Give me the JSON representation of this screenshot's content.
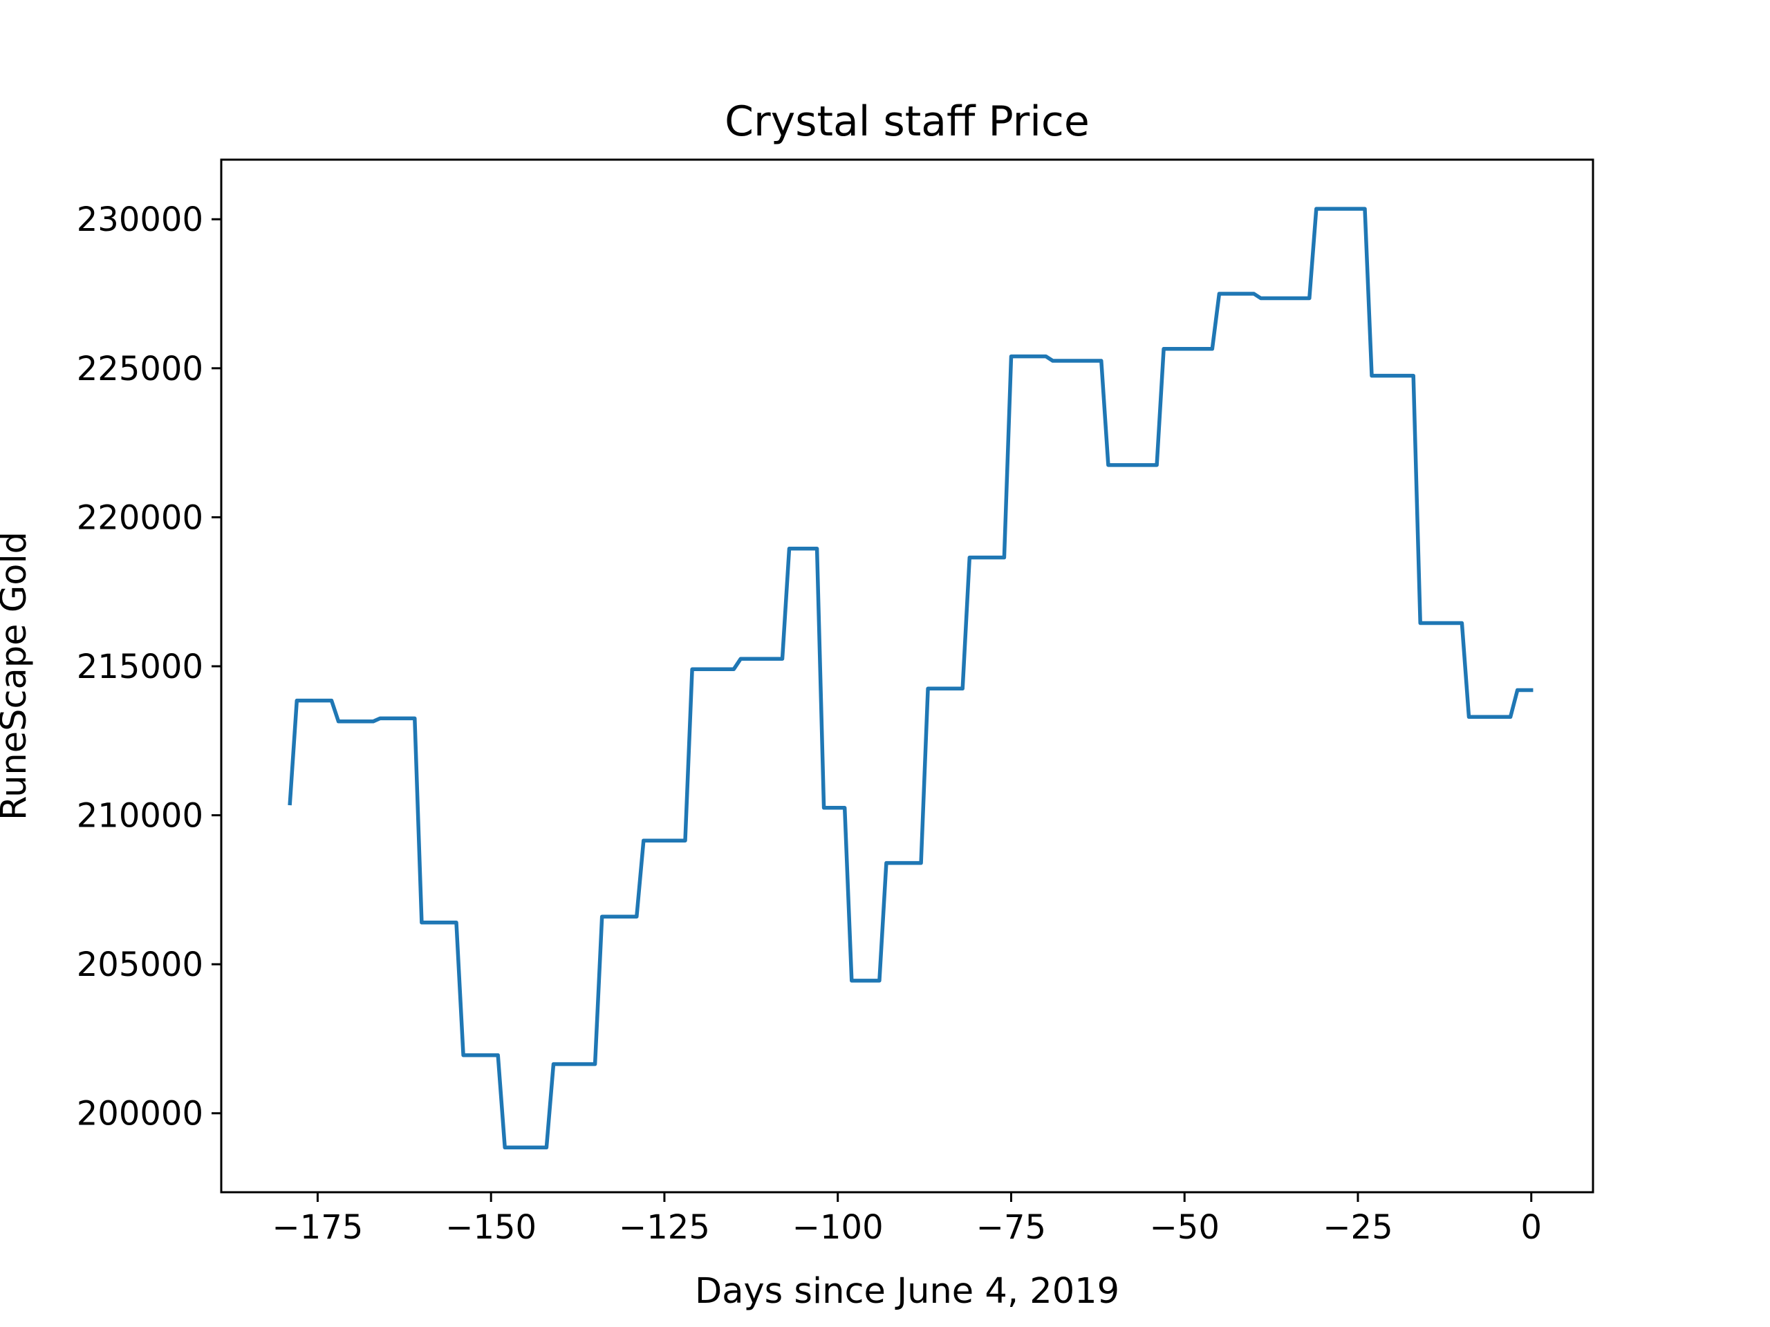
{
  "chart_data": {
    "type": "line",
    "title": "Crystal staff Price",
    "xlabel": "Days since June 4, 2019",
    "ylabel": "RuneScape Gold",
    "xlim": [
      -188.9,
      8.9
    ],
    "ylim": [
      197350,
      232000
    ],
    "xticks": [
      {
        "value": -175,
        "label": "−175"
      },
      {
        "value": -150,
        "label": "−150"
      },
      {
        "value": -125,
        "label": "−125"
      },
      {
        "value": -100,
        "label": "−100"
      },
      {
        "value": -75,
        "label": "−75"
      },
      {
        "value": -50,
        "label": "−50"
      },
      {
        "value": -25,
        "label": "−25"
      },
      {
        "value": 0,
        "label": "0"
      }
    ],
    "yticks": [
      {
        "value": 200000,
        "label": "200000"
      },
      {
        "value": 205000,
        "label": "205000"
      },
      {
        "value": 210000,
        "label": "210000"
      },
      {
        "value": 215000,
        "label": "215000"
      },
      {
        "value": 220000,
        "label": "220000"
      },
      {
        "value": 225000,
        "label": "225000"
      },
      {
        "value": 230000,
        "label": "230000"
      }
    ],
    "grid": false,
    "series": [
      {
        "name": "Crystal staff",
        "color": "#1f77b4",
        "x": [
          -179,
          -178,
          -173,
          -172,
          -167,
          -166,
          -161,
          -160,
          -155,
          -154,
          -149,
          -148,
          -142,
          -141,
          -135,
          -134,
          -129,
          -128,
          -122,
          -121,
          -115,
          -114,
          -108,
          -107,
          -103,
          -102,
          -99,
          -98,
          -94,
          -93,
          -88,
          -87,
          -82,
          -81,
          -76,
          -75,
          -70,
          -69,
          -62,
          -61,
          -54,
          -53,
          -46,
          -45,
          -40,
          -39,
          -32,
          -31,
          -24,
          -23,
          -17,
          -16,
          -10,
          -9,
          -3,
          -2,
          0
        ],
        "y": [
          210400,
          213850,
          213850,
          213150,
          213150,
          213250,
          213250,
          206400,
          206400,
          201950,
          201950,
          198850,
          198850,
          201650,
          201650,
          206600,
          206600,
          209150,
          209150,
          214900,
          214900,
          215250,
          215250,
          218950,
          218950,
          210250,
          210250,
          204450,
          204450,
          208400,
          208400,
          214250,
          214250,
          218650,
          218650,
          225400,
          225400,
          225250,
          225250,
          221750,
          221750,
          225650,
          225650,
          227500,
          227500,
          227350,
          227350,
          230350,
          230350,
          224750,
          224750,
          216450,
          216450,
          213300,
          213300,
          214200,
          214200
        ]
      }
    ]
  }
}
